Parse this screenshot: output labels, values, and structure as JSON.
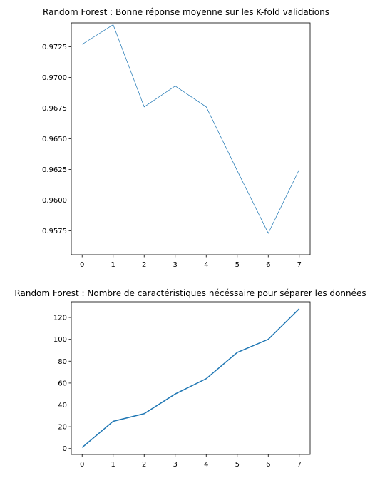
{
  "chart_data": [
    {
      "type": "line",
      "title": "Random Forest : Bonne réponse moyenne sur les K-fold validations",
      "xlabel": "",
      "ylabel": "",
      "x": [
        0,
        1,
        2,
        3,
        4,
        5,
        6,
        7
      ],
      "x_ticks": [
        "0",
        "1",
        "2",
        "3",
        "4",
        "5",
        "6",
        "7"
      ],
      "xlim": [
        -0.35,
        7.35
      ],
      "y_ticks": [
        "0.9575",
        "0.9600",
        "0.9625",
        "0.9650",
        "0.9675",
        "0.9700",
        "0.9725"
      ],
      "ylim": [
        0.95555,
        0.97445
      ],
      "grid": false,
      "series": [
        {
          "values": [
            0.9727,
            0.9743,
            0.9676,
            0.9693,
            0.9676,
            0.9624,
            0.9573,
            0.9625
          ],
          "color": "#1f77b4"
        }
      ]
    },
    {
      "type": "line",
      "title": "Random Forest : Nombre de caractéristiques nécéssaire pour séparer les données",
      "xlabel": "",
      "ylabel": "",
      "x": [
        0,
        1,
        2,
        3,
        4,
        5,
        6,
        7
      ],
      "x_ticks": [
        "0",
        "1",
        "2",
        "3",
        "4",
        "5",
        "6",
        "7"
      ],
      "xlim": [
        -0.35,
        7.35
      ],
      "y_ticks": [
        "0",
        "20",
        "40",
        "60",
        "80",
        "100",
        "120"
      ],
      "ylim": [
        -5.4,
        134.4
      ],
      "grid": false,
      "series": [
        {
          "values": [
            1,
            25,
            32,
            50,
            64,
            88,
            100,
            128
          ],
          "color": "#1f77b4"
        }
      ]
    }
  ]
}
